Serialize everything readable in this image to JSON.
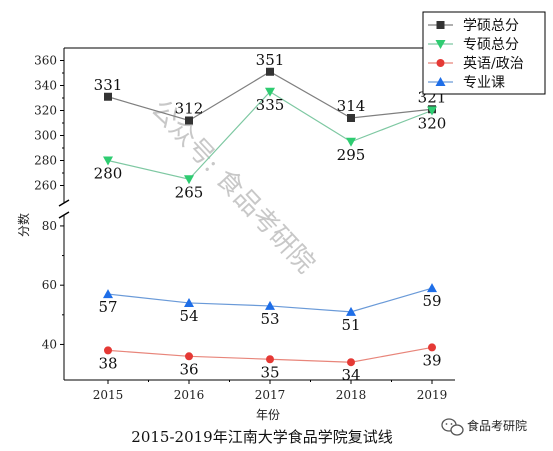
{
  "chart_data": {
    "type": "line",
    "title": "2015-2019年江南大学食品学院复试线",
    "xlabel": "年份",
    "ylabel": "分数",
    "categories": [
      "2015",
      "2016",
      "2017",
      "2018",
      "2019"
    ],
    "axis_break": true,
    "y_upper": {
      "range": [
        250,
        370
      ],
      "ticks": [
        260,
        280,
        300,
        320,
        340,
        360
      ]
    },
    "y_lower": {
      "range": [
        28,
        82
      ],
      "ticks": [
        40,
        60,
        80
      ]
    },
    "legend_position": "top-right",
    "series": [
      {
        "name": "学硕总分",
        "values": [
          331,
          312,
          351,
          314,
          321
        ],
        "color": "#7f7f7f",
        "marker": "square",
        "marker_color": "#333333",
        "panel": "upper"
      },
      {
        "name": "专硕总分",
        "values": [
          280,
          265,
          335,
          295,
          320
        ],
        "color": "#7ec8a2",
        "marker": "triangle-down",
        "marker_color": "#2ecc71",
        "panel": "upper"
      },
      {
        "name": "英语/政治",
        "values": [
          38,
          36,
          35,
          34,
          39
        ],
        "color": "#e8857a",
        "marker": "circle",
        "marker_color": "#e53935",
        "panel": "lower"
      },
      {
        "name": "专业课",
        "values": [
          57,
          54,
          53,
          51,
          59
        ],
        "color": "#6a9ad8",
        "marker": "triangle-up",
        "marker_color": "#1e6ee8",
        "panel": "lower"
      }
    ]
  },
  "watermark": {
    "text": "公众号: 食品考研院"
  },
  "branding": {
    "label": "食品考研院",
    "icon": "wechat-logo-icon"
  }
}
